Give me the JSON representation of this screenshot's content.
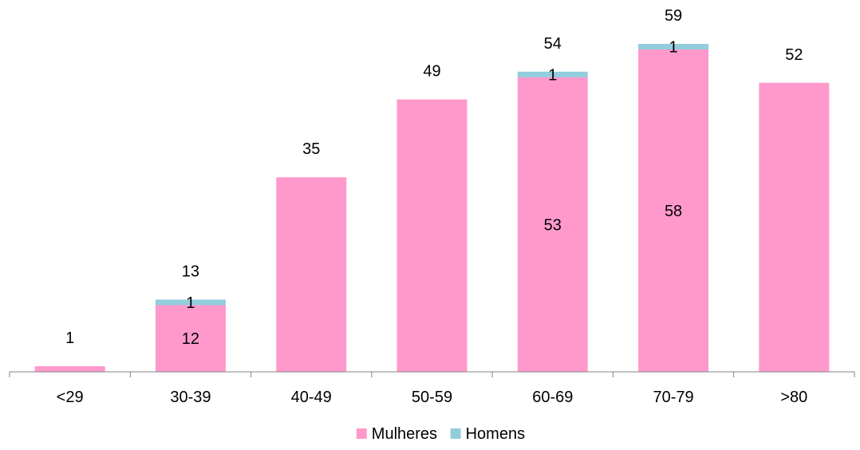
{
  "chart_data": {
    "type": "bar",
    "stacked": true,
    "categories": [
      "<29",
      "30-39",
      "40-49",
      "50-59",
      "60-69",
      "70-79",
      ">80"
    ],
    "series": [
      {
        "name": "Mulheres",
        "color": "#FF99CC",
        "values": [
          1,
          12,
          35,
          49,
          53,
          58,
          52
        ]
      },
      {
        "name": "Homens",
        "color": "#92CDDC",
        "values": [
          0,
          1,
          0,
          0,
          1,
          1,
          0
        ]
      }
    ],
    "totals": [
      1,
      13,
      35,
      49,
      54,
      59,
      52
    ],
    "segment_labels": {
      "Mulheres": [
        "",
        "12",
        "",
        "",
        "53",
        "58",
        ""
      ],
      "Homens": [
        "",
        "1",
        "",
        "",
        "1",
        "1",
        ""
      ]
    },
    "title": "",
    "xlabel": "",
    "ylabel": "",
    "ylim": [
      0,
      59
    ],
    "grid": false,
    "legend_position": "bottom"
  }
}
